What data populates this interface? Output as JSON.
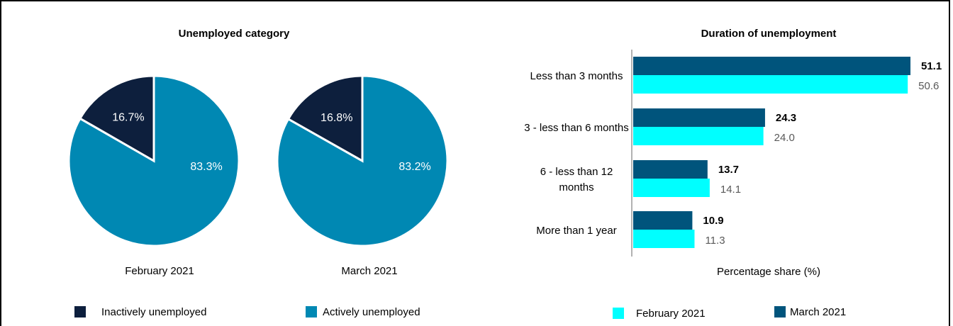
{
  "left_chart": {
    "title": "Unemployed category",
    "legend": [
      {
        "label": "Inactively unemployed",
        "color": "#0d1f3d"
      },
      {
        "label": "Actively unemployed",
        "color": "#0088b3"
      }
    ]
  },
  "right_chart": {
    "title": "Duration of unemployment",
    "xlabel": "Percentage share (%)",
    "legend": [
      {
        "label": "February 2021",
        "color": "#00ffff"
      },
      {
        "label": "March 2021",
        "color": "#00547c"
      }
    ]
  },
  "chart_data": [
    {
      "type": "pie",
      "label": "February 2021",
      "slices": [
        {
          "name": "Inactively unemployed",
          "value": 16.7,
          "text": "16.7%",
          "color": "#0d1f3d"
        },
        {
          "name": "Actively unemployed",
          "value": 83.3,
          "text": "83.3%",
          "color": "#0088b3"
        }
      ]
    },
    {
      "type": "pie",
      "label": "March 2021",
      "slices": [
        {
          "name": "Inactively unemployed",
          "value": 16.8,
          "text": "16.8%",
          "color": "#0d1f3d"
        },
        {
          "name": "Actively unemployed",
          "value": 83.2,
          "text": "83.2%",
          "color": "#0088b3"
        }
      ]
    },
    {
      "type": "bar",
      "orientation": "horizontal",
      "title": "Duration of unemployment",
      "xlabel": "Percentage share (%)",
      "categories": [
        [
          "Less than 3 months"
        ],
        [
          "3 - less than 6 months"
        ],
        [
          "6 - less than 12",
          "months"
        ],
        [
          "More than 1 year"
        ]
      ],
      "series": [
        {
          "name": "March 2021",
          "color": "#00547c",
          "values": [
            51.1,
            24.3,
            13.7,
            10.9
          ]
        },
        {
          "name": "February 2021",
          "color": "#00ffff",
          "values": [
            50.6,
            24.0,
            14.1,
            11.3
          ]
        }
      ],
      "xlim": [
        0,
        51.1
      ]
    }
  ]
}
